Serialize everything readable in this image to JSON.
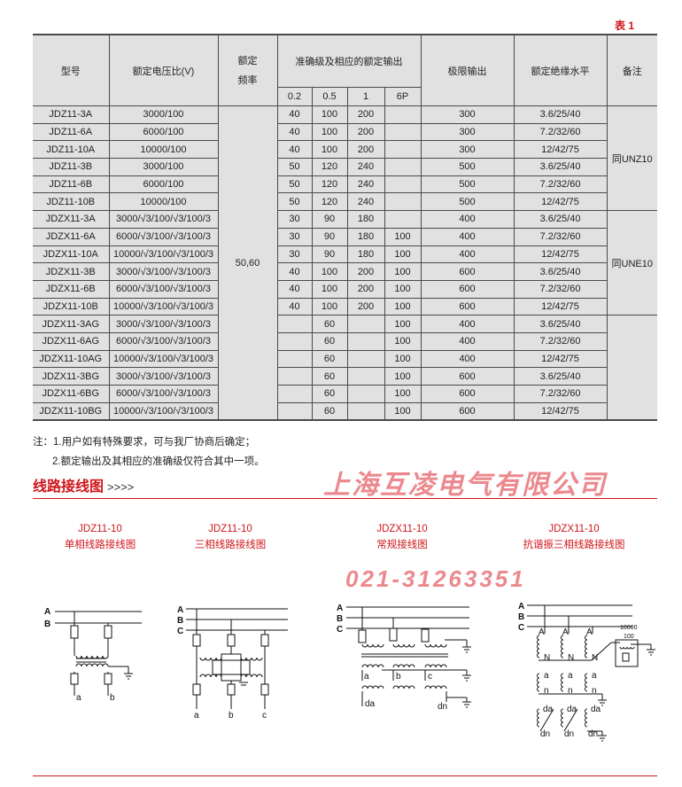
{
  "table_label": "表 1",
  "table": {
    "headers": {
      "model": "型号",
      "voltage_ratio": "额定电压比(V)",
      "frequency": "额定\n频率",
      "accuracy_group": "准确级及相应的额定输出",
      "accuracy_classes": [
        "0.2",
        "0.5",
        "1",
        "6P"
      ],
      "limit_output": "极限输出",
      "insulation": "额定绝缘水平",
      "remarks": "备注"
    },
    "frequency_value": "50,60",
    "remarks_groups": [
      "同UNZ10",
      "同UNE10",
      ""
    ],
    "rows": [
      {
        "model": "JDZ11-3A",
        "ratio": "3000/100",
        "c02": "40",
        "c05": "100",
        "c1": "200",
        "c6p": "",
        "limit": "300",
        "insulation": "3.6/25/40"
      },
      {
        "model": "JDZ11-6A",
        "ratio": "6000/100",
        "c02": "40",
        "c05": "100",
        "c1": "200",
        "c6p": "",
        "limit": "300",
        "insulation": "7.2/32/60"
      },
      {
        "model": "JDZ11-10A",
        "ratio": "10000/100",
        "c02": "40",
        "c05": "100",
        "c1": "200",
        "c6p": "",
        "limit": "300",
        "insulation": "12/42/75"
      },
      {
        "model": "JDZ11-3B",
        "ratio": "3000/100",
        "c02": "50",
        "c05": "120",
        "c1": "240",
        "c6p": "",
        "limit": "500",
        "insulation": "3.6/25/40"
      },
      {
        "model": "JDZ11-6B",
        "ratio": "6000/100",
        "c02": "50",
        "c05": "120",
        "c1": "240",
        "c6p": "",
        "limit": "500",
        "insulation": "7.2/32/60"
      },
      {
        "model": "JDZ11-10B",
        "ratio": "10000/100",
        "c02": "50",
        "c05": "120",
        "c1": "240",
        "c6p": "",
        "limit": "500",
        "insulation": "12/42/75"
      },
      {
        "model": "JDZX11-3A",
        "ratio": "3000/√3/100/√3/100/3",
        "c02": "30",
        "c05": "90",
        "c1": "180",
        "c6p": "",
        "limit": "400",
        "insulation": "3.6/25/40"
      },
      {
        "model": "JDZX11-6A",
        "ratio": "6000/√3/100/√3/100/3",
        "c02": "30",
        "c05": "90",
        "c1": "180",
        "c6p": "100",
        "limit": "400",
        "insulation": "7.2/32/60"
      },
      {
        "model": "JDZX11-10A",
        "ratio": "10000/√3/100/√3/100/3",
        "c02": "30",
        "c05": "90",
        "c1": "180",
        "c6p": "100",
        "limit": "400",
        "insulation": "12/42/75"
      },
      {
        "model": "JDZX11-3B",
        "ratio": "3000/√3/100/√3/100/3",
        "c02": "40",
        "c05": "100",
        "c1": "200",
        "c6p": "100",
        "limit": "600",
        "insulation": "3.6/25/40"
      },
      {
        "model": "JDZX11-6B",
        "ratio": "6000/√3/100/√3/100/3",
        "c02": "40",
        "c05": "100",
        "c1": "200",
        "c6p": "100",
        "limit": "600",
        "insulation": "7.2/32/60"
      },
      {
        "model": "JDZX11-10B",
        "ratio": "10000/√3/100/√3/100/3",
        "c02": "40",
        "c05": "100",
        "c1": "200",
        "c6p": "100",
        "limit": "600",
        "insulation": "12/42/75"
      },
      {
        "model": "JDZX11-3AG",
        "ratio": "3000/√3/100/√3/100/3",
        "c02": "",
        "c05": "60",
        "c1": "",
        "c6p": "100",
        "limit": "400",
        "insulation": "3.6/25/40"
      },
      {
        "model": "JDZX11-6AG",
        "ratio": "6000/√3/100/√3/100/3",
        "c02": "",
        "c05": "60",
        "c1": "",
        "c6p": "100",
        "limit": "400",
        "insulation": "7.2/32/60"
      },
      {
        "model": "JDZX11-10AG",
        "ratio": "10000/√3/100/√3/100/3",
        "c02": "",
        "c05": "60",
        "c1": "",
        "c6p": "100",
        "limit": "400",
        "insulation": "12/42/75"
      },
      {
        "model": "JDZX11-3BG",
        "ratio": "3000/√3/100/√3/100/3",
        "c02": "",
        "c05": "60",
        "c1": "",
        "c6p": "100",
        "limit": "600",
        "insulation": "3.6/25/40"
      },
      {
        "model": "JDZX11-6BG",
        "ratio": "6000/√3/100/√3/100/3",
        "c02": "",
        "c05": "60",
        "c1": "",
        "c6p": "100",
        "limit": "600",
        "insulation": "7.2/32/60"
      },
      {
        "model": "JDZX11-10BG",
        "ratio": "10000/√3/100/√3/100/3",
        "c02": "",
        "c05": "60",
        "c1": "",
        "c6p": "100",
        "limit": "600",
        "insulation": "12/42/75"
      }
    ]
  },
  "notes": {
    "line1": "注：1.用户如有特殊要求，可与我厂协商后确定；",
    "line2": "2.额定输出及其相应的准确级仅符合其中一项。"
  },
  "section": {
    "title": "线路接线图",
    "arrows": ">>>>"
  },
  "diagrams": [
    {
      "model": "JDZ11-10",
      "caption": "单相线路接线图",
      "labels": {
        "A": "A",
        "B": "B",
        "a": "a",
        "b": "b"
      }
    },
    {
      "model": "JDZ11-10",
      "caption": "三相线路接线图",
      "labels": {
        "A": "A",
        "B": "B",
        "C": "C",
        "a": "a",
        "b": "b",
        "c": "c"
      }
    },
    {
      "model": "JDZX11-10",
      "caption": "常规接线图",
      "labels": {
        "A": "A",
        "B": "B",
        "C": "C",
        "a": "a",
        "b": "b",
        "c": "c",
        "da": "da",
        "dn": "dn"
      }
    },
    {
      "model": "JDZX11-10",
      "caption": "抗谐振三相线路接线图",
      "labels": {
        "A": "A",
        "B": "B",
        "C": "C",
        "N": "N",
        "a": "a",
        "n": "n",
        "da": "da",
        "dn": "dn",
        "ratio_top": "10000",
        "ratio_bottom": "100"
      }
    }
  ],
  "watermark": {
    "company": "上海互凌电气有限公司",
    "phone": "021-31263351"
  },
  "colors": {
    "accent": "#d0161b",
    "table_bg": "#e1e1e2",
    "border": "#4a4a4a"
  }
}
